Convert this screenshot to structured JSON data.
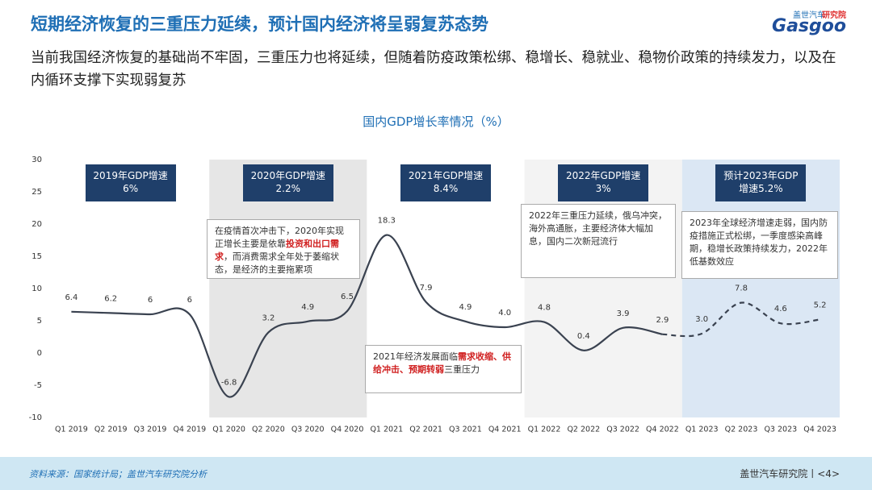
{
  "header": {
    "title": "短期经济恢复的三重压力延续，预计国内经济将呈弱复苏态势",
    "subtitle": "当前我国经济恢复的基础尚不牢固，三重压力也将延续，但随着防疫政策松绑、稳增长、稳就业、稳物价政策的持续发力，以及在内循环支撑下实现弱复苏",
    "logo": {
      "top": "盖世汽车",
      "badge": "研究院",
      "brand": "Gasgoo"
    }
  },
  "chart_data": {
    "type": "line",
    "title": "国内GDP增长率情况（%）",
    "categories": [
      "Q1 2019",
      "Q2 2019",
      "Q3 2019",
      "Q4 2019",
      "Q1 2020",
      "Q2 2020",
      "Q3 2020",
      "Q4 2020",
      "Q1 2021",
      "Q2 2021",
      "Q3 2021",
      "Q4 2021",
      "Q1 2022",
      "Q2 2022",
      "Q3 2022",
      "Q4 2022",
      "Q1 2023",
      "Q2 2023",
      "Q3 2023",
      "Q4 2023"
    ],
    "values": [
      6.4,
      6.2,
      6,
      6,
      -6.8,
      3.2,
      4.9,
      6.5,
      18.3,
      7.9,
      4.9,
      4.0,
      4.8,
      0.4,
      3.9,
      2.9,
      3.0,
      7.8,
      4.6,
      5.2
    ],
    "value_labels": [
      "6.4",
      "6.2",
      "6",
      "6",
      "-6.8",
      "3.2",
      "4.9",
      "6.5",
      "18.3",
      "7.9",
      "4.9",
      "4.0",
      "4.8",
      "0.4",
      "3.9",
      "2.9",
      "3.0",
      "7.8",
      "4.6",
      "5.2"
    ],
    "color": "#3a4250",
    "dashed_from": "Q1 2023",
    "ylim": [
      -10,
      30
    ],
    "yticks": [
      -10,
      -5,
      0,
      5,
      10,
      15,
      20,
      25,
      30
    ],
    "grid": false,
    "year_boxes": [
      {
        "lines": [
          "2019年GDP增速",
          "6%"
        ],
        "shade": "#ffffff"
      },
      {
        "lines": [
          "2020年GDP增速",
          "2.2%"
        ],
        "shade": "#e6e6e6"
      },
      {
        "lines": [
          "2021年GDP增速",
          "8.4%"
        ],
        "shade": "#ffffff"
      },
      {
        "lines": [
          "2022年GDP增速",
          "3%"
        ],
        "shade": "#f3f3f3"
      },
      {
        "lines": [
          "预计2023年GDP",
          "增速5.2%"
        ],
        "shade": "#dbe7f4"
      }
    ],
    "annotations": [
      {
        "segments": [
          {
            "text": "在疫情首次冲击下，2020年实现正增长主要是依靠",
            "red": false
          },
          {
            "text": "投资和出口需求",
            "red": true
          },
          {
            "text": "，而消费需求全年处于萎缩状态，是经济的主要拖累项",
            "red": false
          }
        ]
      },
      {
        "segments": [
          {
            "text": "2021年经济发展面临",
            "red": false
          },
          {
            "text": "需求收缩、供给冲击、预期转弱",
            "red": true
          },
          {
            "text": "三重压力",
            "red": false
          }
        ]
      },
      {
        "segments": [
          {
            "text": "2022年三重压力延续，俄乌冲突，海外高通胀，主要经济体大幅加息，国内二次新冠流行",
            "red": false
          }
        ]
      },
      {
        "segments": [
          {
            "text": "2023年全球经济增速走弱，国内防疫措施正式松绑，一季度感染高峰期，稳增长政策持续发力，2022年低基数效应",
            "red": false
          }
        ]
      }
    ]
  },
  "footer": {
    "source": "资料来源：国家统计局；盖世汽车研究院分析",
    "page": "盖世汽车研究院丨<4>"
  }
}
